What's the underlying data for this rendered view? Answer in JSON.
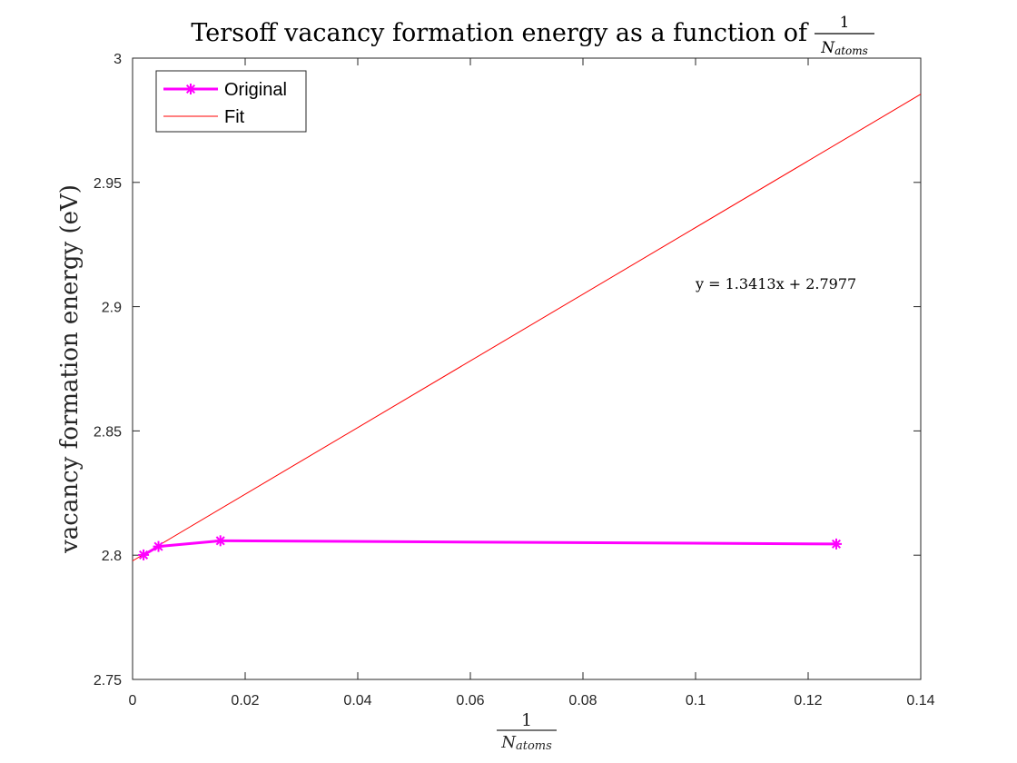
{
  "chart_data": {
    "type": "line",
    "title": {
      "prefix": "Tersoff vacancy formation energy as a function of",
      "frac_numerator": "1",
      "frac_denominator_base": "N",
      "frac_denominator_sub": "atoms"
    },
    "xlabel": {
      "frac_numerator": "1",
      "frac_denominator_base": "N",
      "frac_denominator_sub": "atoms"
    },
    "ylabel": "vacancy formation energy (eV)",
    "xlim": [
      0,
      0.14
    ],
    "ylim": [
      2.75,
      3.0
    ],
    "x_ticks": [
      0,
      0.02,
      0.04,
      0.06,
      0.08,
      0.1,
      0.12,
      0.14
    ],
    "x_tick_labels": [
      "0",
      "0.02",
      "0.04",
      "0.06",
      "0.08",
      "0.1",
      "0.12",
      "0.14"
    ],
    "y_ticks": [
      2.75,
      2.8,
      2.85,
      2.9,
      2.95,
      3.0
    ],
    "y_tick_labels": [
      "2.75",
      "2.8",
      "2.85",
      "2.9",
      "2.95",
      "3"
    ],
    "grid": false,
    "legend": {
      "position": "top-left",
      "entries": [
        "Original",
        "Fit"
      ]
    },
    "series": [
      {
        "name": "Original",
        "type": "line",
        "marker": "asterisk",
        "color": "#ff00ff",
        "x": [
          0.00195,
          0.0046,
          0.0156,
          0.125
        ],
        "y": [
          2.8001,
          2.8035,
          2.8058,
          2.8045
        ]
      },
      {
        "name": "Fit",
        "type": "line",
        "color": "#ff0000",
        "slope": 1.3413,
        "intercept": 2.7977,
        "x_range": [
          0,
          0.14
        ]
      }
    ],
    "annotations": [
      {
        "text": "y = 1.3413x + 2.7977",
        "x": 0.1,
        "y": 2.909
      }
    ]
  }
}
